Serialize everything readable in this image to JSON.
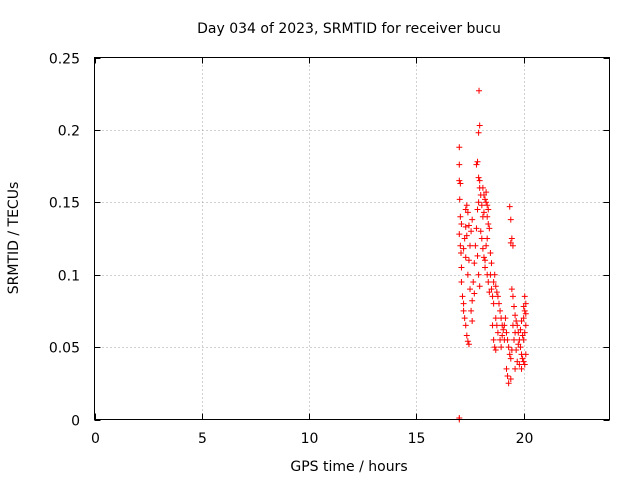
{
  "chart_data": {
    "type": "scatter",
    "title": "Day 034 of 2023, SRMTID for receiver bucu",
    "xlabel": "GPS time / hours",
    "ylabel": "SRMTID / TECUs",
    "xlim": [
      0,
      24
    ],
    "ylim": [
      0,
      0.25
    ],
    "grid": true,
    "x_ticks": [
      0,
      5,
      10,
      15,
      20
    ],
    "x_tick_labels": [
      "0",
      "5",
      "10",
      "15",
      "20"
    ],
    "y_ticks": [
      0,
      0.05,
      0.1,
      0.15,
      0.2,
      0.25
    ],
    "y_tick_labels": [
      "0",
      "0.05",
      "0.1",
      "0.15",
      "0.2",
      "0.25"
    ],
    "marker": "+",
    "color": "#ff0000",
    "series": [
      {
        "name": "SRMTID",
        "points": [
          [
            17.0,
            0.0
          ],
          [
            17.0,
            0.001
          ],
          [
            17.0,
            0.188
          ],
          [
            17.0,
            0.176
          ],
          [
            17.0,
            0.165
          ],
          [
            17.05,
            0.163
          ],
          [
            17.02,
            0.152
          ],
          [
            17.05,
            0.14
          ],
          [
            17.0,
            0.128
          ],
          [
            17.1,
            0.135
          ],
          [
            17.05,
            0.12
          ],
          [
            17.08,
            0.115
          ],
          [
            17.1,
            0.105
          ],
          [
            17.1,
            0.095
          ],
          [
            17.15,
            0.085
          ],
          [
            17.2,
            0.08
          ],
          [
            17.2,
            0.075
          ],
          [
            17.25,
            0.07
          ],
          [
            17.3,
            0.065
          ],
          [
            17.35,
            0.058
          ],
          [
            17.4,
            0.054
          ],
          [
            17.45,
            0.052
          ],
          [
            17.3,
            0.145
          ],
          [
            17.35,
            0.148
          ],
          [
            17.4,
            0.143
          ],
          [
            17.3,
            0.133
          ],
          [
            17.25,
            0.125
          ],
          [
            17.2,
            0.118
          ],
          [
            17.3,
            0.112
          ],
          [
            17.4,
            0.1
          ],
          [
            17.45,
            0.11
          ],
          [
            17.5,
            0.12
          ],
          [
            17.5,
            0.09
          ],
          [
            17.55,
            0.075
          ],
          [
            17.6,
            0.068
          ],
          [
            17.6,
            0.082
          ],
          [
            17.65,
            0.095
          ],
          [
            17.7,
            0.108
          ],
          [
            17.75,
            0.12
          ],
          [
            17.8,
            0.132
          ],
          [
            17.85,
            0.145
          ],
          [
            17.9,
            0.15
          ],
          [
            17.8,
            0.176
          ],
          [
            17.85,
            0.178
          ],
          [
            17.9,
            0.167
          ],
          [
            17.95,
            0.165
          ],
          [
            17.9,
            0.198
          ],
          [
            17.95,
            0.203
          ],
          [
            17.92,
            0.227
          ],
          [
            17.95,
            0.16
          ],
          [
            18.0,
            0.155
          ],
          [
            18.05,
            0.148
          ],
          [
            18.1,
            0.14
          ],
          [
            18.0,
            0.13
          ],
          [
            18.05,
            0.125
          ],
          [
            18.1,
            0.118
          ],
          [
            18.15,
            0.112
          ],
          [
            18.2,
            0.105
          ],
          [
            18.1,
            0.16
          ],
          [
            18.15,
            0.155
          ],
          [
            18.2,
            0.152
          ],
          [
            18.25,
            0.15
          ],
          [
            18.3,
            0.148
          ],
          [
            18.3,
            0.14
          ],
          [
            18.35,
            0.135
          ],
          [
            18.3,
            0.125
          ],
          [
            18.25,
            0.12
          ],
          [
            18.2,
            0.11
          ],
          [
            18.3,
            0.1
          ],
          [
            18.35,
            0.095
          ],
          [
            18.4,
            0.088
          ],
          [
            18.45,
            0.1
          ],
          [
            18.5,
            0.108
          ],
          [
            18.45,
            0.115
          ],
          [
            18.5,
            0.09
          ],
          [
            18.55,
            0.085
          ],
          [
            18.6,
            0.08
          ],
          [
            18.6,
            0.095
          ],
          [
            18.65,
            0.1
          ],
          [
            18.7,
            0.092
          ],
          [
            18.75,
            0.088
          ],
          [
            18.8,
            0.085
          ],
          [
            18.85,
            0.08
          ],
          [
            18.9,
            0.075
          ],
          [
            18.95,
            0.07
          ],
          [
            19.0,
            0.065
          ],
          [
            18.7,
            0.07
          ],
          [
            18.75,
            0.065
          ],
          [
            18.8,
            0.06
          ],
          [
            18.9,
            0.055
          ],
          [
            18.95,
            0.05
          ],
          [
            19.0,
            0.058
          ],
          [
            19.05,
            0.062
          ],
          [
            19.1,
            0.055
          ],
          [
            18.55,
            0.065
          ],
          [
            18.6,
            0.055
          ],
          [
            18.65,
            0.05
          ],
          [
            18.7,
            0.048
          ],
          [
            19.1,
            0.065
          ],
          [
            19.15,
            0.07
          ],
          [
            19.2,
            0.06
          ],
          [
            19.25,
            0.055
          ],
          [
            19.3,
            0.05
          ],
          [
            19.35,
            0.045
          ],
          [
            19.4,
            0.042
          ],
          [
            19.45,
            0.048
          ],
          [
            19.2,
            0.035
          ],
          [
            19.25,
            0.03
          ],
          [
            19.3,
            0.025
          ],
          [
            19.4,
            0.028
          ],
          [
            19.35,
            0.147
          ],
          [
            19.4,
            0.138
          ],
          [
            19.45,
            0.125
          ],
          [
            19.4,
            0.122
          ],
          [
            19.5,
            0.12
          ],
          [
            19.45,
            0.09
          ],
          [
            19.5,
            0.085
          ],
          [
            19.55,
            0.078
          ],
          [
            19.6,
            0.072
          ],
          [
            19.65,
            0.068
          ],
          [
            19.7,
            0.065
          ],
          [
            19.75,
            0.06
          ],
          [
            19.8,
            0.055
          ],
          [
            19.85,
            0.05
          ],
          [
            19.9,
            0.045
          ],
          [
            19.95,
            0.042
          ],
          [
            19.6,
            0.035
          ],
          [
            19.7,
            0.04
          ],
          [
            19.8,
            0.038
          ],
          [
            19.9,
            0.035
          ],
          [
            20.0,
            0.04
          ],
          [
            20.05,
            0.038
          ],
          [
            20.1,
            0.045
          ],
          [
            20.0,
            0.055
          ],
          [
            20.05,
            0.06
          ],
          [
            20.1,
            0.065
          ],
          [
            20.0,
            0.07
          ],
          [
            20.05,
            0.075
          ],
          [
            20.1,
            0.08
          ],
          [
            20.05,
            0.085
          ],
          [
            20.0,
            0.078
          ],
          [
            20.1,
            0.073
          ],
          [
            19.9,
            0.068
          ],
          [
            19.85,
            0.062
          ],
          [
            19.95,
            0.058
          ],
          [
            19.75,
            0.052
          ],
          [
            19.65,
            0.048
          ],
          [
            19.55,
            0.055
          ],
          [
            19.6,
            0.06
          ],
          [
            19.5,
            0.065
          ],
          [
            18.4,
            0.132
          ],
          [
            18.35,
            0.145
          ],
          [
            18.25,
            0.157
          ],
          [
            18.15,
            0.143
          ],
          [
            17.85,
            0.113
          ],
          [
            17.9,
            0.1
          ],
          [
            17.95,
            0.092
          ],
          [
            17.7,
            0.087
          ],
          [
            17.55,
            0.13
          ],
          [
            17.6,
            0.138
          ],
          [
            17.45,
            0.134
          ],
          [
            17.35,
            0.127
          ]
        ]
      }
    ]
  }
}
